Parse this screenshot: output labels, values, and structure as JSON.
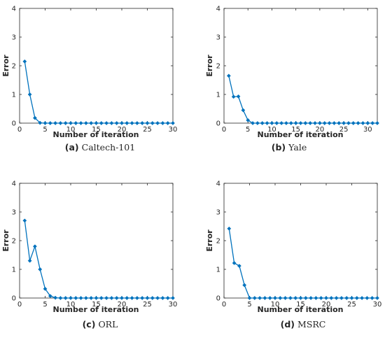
{
  "chart_data": [
    {
      "type": "line",
      "caption_tag": "(a)",
      "caption_name": "Caltech-101",
      "xlabel": "Number of iteration",
      "ylabel": "Error",
      "xlim": [
        0,
        30
      ],
      "ylim": [
        0,
        4
      ],
      "xticks": [
        0,
        5,
        10,
        15,
        20,
        25,
        30
      ],
      "yticks": [
        0,
        1,
        2,
        3,
        4
      ],
      "color": "#0072BD",
      "x": [
        1,
        2,
        3,
        4,
        5,
        6,
        7,
        8,
        9,
        10,
        11,
        12,
        13,
        14,
        15,
        16,
        17,
        18,
        19,
        20,
        21,
        22,
        23,
        24,
        25,
        26,
        27,
        28,
        29,
        30
      ],
      "y": [
        2.15,
        1.0,
        0.18,
        0.01,
        0,
        0,
        0,
        0,
        0,
        0,
        0,
        0,
        0,
        0,
        0,
        0,
        0,
        0,
        0,
        0,
        0,
        0,
        0,
        0,
        0,
        0,
        0,
        0,
        0,
        0
      ]
    },
    {
      "type": "line",
      "caption_tag": "(b)",
      "caption_name": "Yale",
      "xlabel": "Number of iteration",
      "ylabel": "Error",
      "xlim": [
        0,
        32
      ],
      "ylim": [
        0,
        4
      ],
      "xticks": [
        0,
        5,
        10,
        15,
        20,
        25,
        30
      ],
      "yticks": [
        0,
        1,
        2,
        3,
        4
      ],
      "color": "#0072BD",
      "x": [
        1,
        2,
        3,
        4,
        5,
        6,
        7,
        8,
        9,
        10,
        11,
        12,
        13,
        14,
        15,
        16,
        17,
        18,
        19,
        20,
        21,
        22,
        23,
        24,
        25,
        26,
        27,
        28,
        29,
        30,
        31,
        32
      ],
      "y": [
        1.65,
        0.92,
        0.93,
        0.45,
        0.1,
        0,
        0,
        0,
        0,
        0,
        0,
        0,
        0,
        0,
        0,
        0,
        0,
        0,
        0,
        0,
        0,
        0,
        0,
        0,
        0,
        0,
        0,
        0,
        0,
        0,
        0,
        0
      ]
    },
    {
      "type": "line",
      "caption_tag": "(c)",
      "caption_name": "ORL",
      "xlabel": "Number of iteration",
      "ylabel": "Error",
      "xlim": [
        0,
        30
      ],
      "ylim": [
        0,
        4
      ],
      "xticks": [
        0,
        5,
        10,
        15,
        20,
        25,
        30
      ],
      "yticks": [
        0,
        1,
        2,
        3,
        4
      ],
      "color": "#0072BD",
      "x": [
        1,
        2,
        3,
        4,
        5,
        6,
        7,
        8,
        9,
        10,
        11,
        12,
        13,
        14,
        15,
        16,
        17,
        18,
        19,
        20,
        21,
        22,
        23,
        24,
        25,
        26,
        27,
        28,
        29,
        30
      ],
      "y": [
        2.7,
        1.3,
        1.8,
        1.0,
        0.32,
        0.07,
        0.01,
        0,
        0,
        0,
        0,
        0,
        0,
        0,
        0,
        0,
        0,
        0,
        0,
        0,
        0,
        0,
        0,
        0,
        0,
        0,
        0,
        0,
        0,
        0
      ]
    },
    {
      "type": "line",
      "caption_tag": "(d)",
      "caption_name": "MSRC",
      "xlabel": "Number of iteration",
      "ylabel": "Error",
      "xlim": [
        0,
        30
      ],
      "ylim": [
        0,
        4
      ],
      "xticks": [
        0,
        5,
        10,
        15,
        20,
        25,
        30
      ],
      "yticks": [
        0,
        1,
        2,
        3,
        4
      ],
      "color": "#0072BD",
      "x": [
        1,
        2,
        3,
        4,
        5,
        6,
        7,
        8,
        9,
        10,
        11,
        12,
        13,
        14,
        15,
        16,
        17,
        18,
        19,
        20,
        21,
        22,
        23,
        24,
        25,
        26,
        27,
        28,
        29,
        30
      ],
      "y": [
        2.42,
        1.22,
        1.12,
        0.45,
        0,
        0,
        0,
        0,
        0,
        0,
        0,
        0,
        0,
        0,
        0,
        0,
        0,
        0,
        0,
        0,
        0,
        0,
        0,
        0,
        0,
        0,
        0,
        0,
        0,
        0
      ]
    }
  ]
}
